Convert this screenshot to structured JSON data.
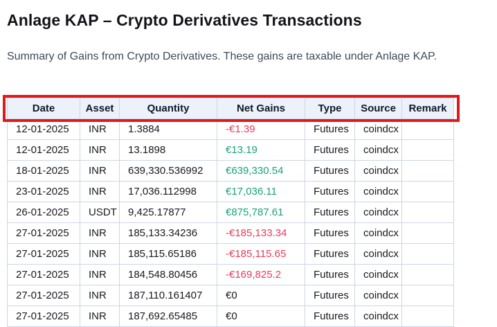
{
  "page": {
    "title": "Anlage KAP – Crypto Derivatives Transactions",
    "subtitle": "Summary of Gains from Crypto Derivatives. These gains are taxable under Anlage KAP."
  },
  "colors": {
    "gain_text": "#18a374",
    "loss_text": "#ea3a5e",
    "annotation_border": "#e01a1a",
    "header_background": "#edf1f9",
    "cell_border": "#ccd6e4"
  },
  "table": {
    "columns": [
      {
        "key": "date",
        "label": "Date"
      },
      {
        "key": "asset",
        "label": "Asset"
      },
      {
        "key": "quantity",
        "label": "Quantity"
      },
      {
        "key": "net_gains",
        "label": "Net Gains"
      },
      {
        "key": "type",
        "label": "Type"
      },
      {
        "key": "source",
        "label": "Source"
      },
      {
        "key": "remark",
        "label": "Remark"
      }
    ],
    "rows": [
      {
        "date": "12-01-2025",
        "asset": "INR",
        "quantity": "1.3884",
        "net_gains": "-€1.39",
        "trend": "loss",
        "type": "Futures",
        "source": "coindcx",
        "remark": ""
      },
      {
        "date": "12-01-2025",
        "asset": "INR",
        "quantity": "13.1898",
        "net_gains": "€13.19",
        "trend": "gain",
        "type": "Futures",
        "source": "coindcx",
        "remark": ""
      },
      {
        "date": "18-01-2025",
        "asset": "INR",
        "quantity": "639,330.536992",
        "net_gains": "€639,330.54",
        "trend": "gain",
        "type": "Futures",
        "source": "coindcx",
        "remark": ""
      },
      {
        "date": "23-01-2025",
        "asset": "INR",
        "quantity": "17,036.112998",
        "net_gains": "€17,036.11",
        "trend": "gain",
        "type": "Futures",
        "source": "coindcx",
        "remark": ""
      },
      {
        "date": "26-01-2025",
        "asset": "USDT",
        "quantity": "9,425.17877",
        "net_gains": "€875,787.61",
        "trend": "gain",
        "type": "Futures",
        "source": "coindcx",
        "remark": ""
      },
      {
        "date": "27-01-2025",
        "asset": "INR",
        "quantity": "185,133.34236",
        "net_gains": "-€185,133.34",
        "trend": "loss",
        "type": "Futures",
        "source": "coindcx",
        "remark": ""
      },
      {
        "date": "27-01-2025",
        "asset": "INR",
        "quantity": "185,115.65186",
        "net_gains": "-€185,115.65",
        "trend": "loss",
        "type": "Futures",
        "source": "coindcx",
        "remark": ""
      },
      {
        "date": "27-01-2025",
        "asset": "INR",
        "quantity": "184,548.80456",
        "net_gains": "-€169,825.2",
        "trend": "loss",
        "type": "Futures",
        "source": "coindcx",
        "remark": ""
      },
      {
        "date": "27-01-2025",
        "asset": "INR",
        "quantity": "187,110.161407",
        "net_gains": "€0",
        "trend": "zero",
        "type": "Futures",
        "source": "coindcx",
        "remark": ""
      },
      {
        "date": "27-01-2025",
        "asset": "INR",
        "quantity": "187,692.65485",
        "net_gains": "€0",
        "trend": "zero",
        "type": "Futures",
        "source": "coindcx",
        "remark": ""
      }
    ]
  }
}
